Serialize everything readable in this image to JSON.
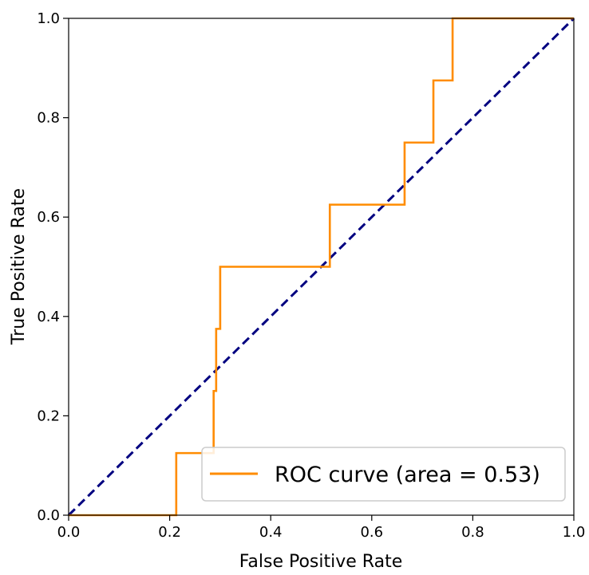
{
  "chart_data": {
    "type": "line",
    "xlabel": "False Positive Rate",
    "ylabel": "True Positive Rate",
    "xlim": [
      0.0,
      1.0
    ],
    "ylim": [
      0.0,
      1.0
    ],
    "xticks": [
      "0.0",
      "0.2",
      "0.4",
      "0.6",
      "0.8",
      "1.0"
    ],
    "yticks": [
      "0.0",
      "0.2",
      "0.4",
      "0.6",
      "0.8",
      "1.0"
    ],
    "grid": false,
    "legend_position": "lower-right",
    "series": [
      {
        "name": "ROC curve (area = 0.53)",
        "color": "#ff8c00",
        "style": "step",
        "x": [
          0.0,
          0.213,
          0.213,
          0.287,
          0.287,
          0.292,
          0.292,
          0.3,
          0.3,
          0.517,
          0.517,
          0.665,
          0.665,
          0.722,
          0.722,
          0.76,
          0.76,
          1.0
        ],
        "y": [
          0.0,
          0.0,
          0.125,
          0.125,
          0.25,
          0.25,
          0.375,
          0.375,
          0.5,
          0.5,
          0.625,
          0.625,
          0.75,
          0.75,
          0.875,
          0.875,
          1.0,
          1.0
        ]
      },
      {
        "name": "",
        "color": "#000080",
        "style": "dashed",
        "x": [
          0.0,
          1.0
        ],
        "y": [
          0.0,
          1.0
        ]
      }
    ]
  }
}
